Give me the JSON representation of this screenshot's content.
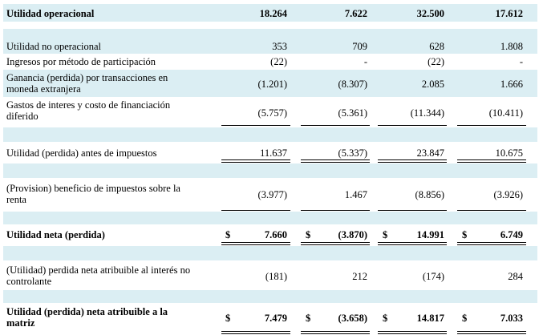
{
  "rows": {
    "op": {
      "label": "Utilidad operacional",
      "v": [
        "18.264",
        "7.622",
        "32.500",
        "17.612"
      ]
    },
    "noop": {
      "label": "Utilidad no operacional",
      "v": [
        "353",
        "709",
        "628",
        "1.808"
      ]
    },
    "ing": {
      "label": "Ingresos por método de participación",
      "v": [
        "(22)",
        "-",
        "(22)",
        "-"
      ]
    },
    "gan": {
      "label1": "Ganancia (perdida) por transacciones en",
      "label2": "moneda extranjera",
      "v": [
        "(1.201)",
        "(8.307)",
        "2.085",
        "1.666"
      ]
    },
    "gas": {
      "label1": "Gastos de interes y costo de financiación",
      "label2": "diferido",
      "v": [
        "(5.757)",
        "(5.361)",
        "(11.344)",
        "(10.411)"
      ]
    },
    "antes": {
      "label": "Utilidad (perdida) antes de impuestos",
      "v": [
        "11.637",
        "(5.337)",
        "23.847",
        "10.675"
      ]
    },
    "prov": {
      "label1": "(Provision) beneficio de impuestos sobre la",
      "label2": "renta",
      "v": [
        "(3.977)",
        "1.467",
        "(8.856)",
        "(3.926)"
      ]
    },
    "neta": {
      "label": "Utilidad neta (perdida)",
      "v": [
        "7.660",
        "(3.870)",
        "14.991",
        "6.749"
      ]
    },
    "nc": {
      "label1": "(Utilidad) perdida neta atribuible al interés no",
      "label2": "controlante",
      "v": [
        "(181)",
        "212",
        "(174)",
        "284"
      ]
    },
    "mat": {
      "label1": "Utilidad (perdida) neta atribuible a la",
      "label2": "matriz",
      "v": [
        "7.479",
        "(3.658)",
        "14.817",
        "7.033"
      ]
    }
  },
  "currency_symbol": "$"
}
